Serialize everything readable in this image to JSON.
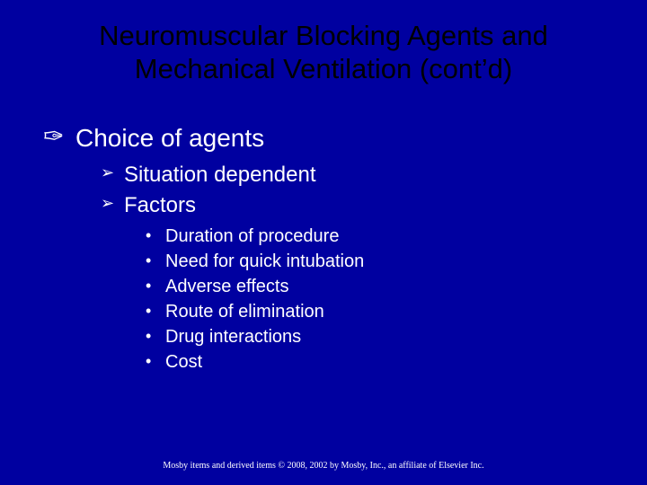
{
  "colors": {
    "background": "#0000a0",
    "title_color": "#000000",
    "body_color": "#ffffff",
    "footer_color": "#ffffff"
  },
  "typography": {
    "title_fontsize": 31,
    "lvl1_fontsize": 28,
    "lvl2_fontsize": 24,
    "lvl3_fontsize": 20,
    "footer_fontsize": 10,
    "body_font": "Arial",
    "footer_font": "Times New Roman"
  },
  "bullets": {
    "lvl1_glyph": "✑",
    "lvl2_glyph": "➢",
    "lvl3_glyph": "•"
  },
  "title_line1": "Neuromuscular Blocking Agents and",
  "title_line2": "Mechanical Ventilation (cont’d)",
  "lvl1_item": "Choice of agents",
  "lvl2_items": [
    "Situation dependent",
    "Factors"
  ],
  "lvl3_items": [
    "Duration of procedure",
    "Need for quick intubation",
    "Adverse effects",
    "Route of elimination",
    "Drug interactions",
    "Cost"
  ],
  "footer": "Mosby items and derived items © 2008, 2002 by Mosby, Inc., an affiliate of Elsevier Inc."
}
